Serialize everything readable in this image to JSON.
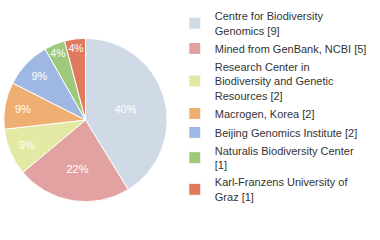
{
  "chart_data": {
    "type": "pie",
    "categories": [
      "Centre for Biodiversity Genomics [9]",
      "Mined from GenBank, NCBI [5]",
      "Research Center in Biodiversity and Genetic Resources [2]",
      "Macrogen, Korea [2]",
      "Beijing Genomics Institute [2]",
      "Naturalis Biodiversity Center [1]",
      "Karl-Franzens University of Graz [1]"
    ],
    "values": [
      40,
      22,
      9,
      9,
      9,
      4,
      4
    ],
    "value_labels": [
      "40%",
      "22%",
      "9%",
      "9%",
      "9%",
      "4%",
      "4%"
    ],
    "data_labels": true,
    "colors": [
      "#cfdae6",
      "#e3a2a2",
      "#e3e8a3",
      "#efaf73",
      "#9fb8e3",
      "#9ec97a",
      "#e1795d"
    ],
    "legend": "right"
  }
}
